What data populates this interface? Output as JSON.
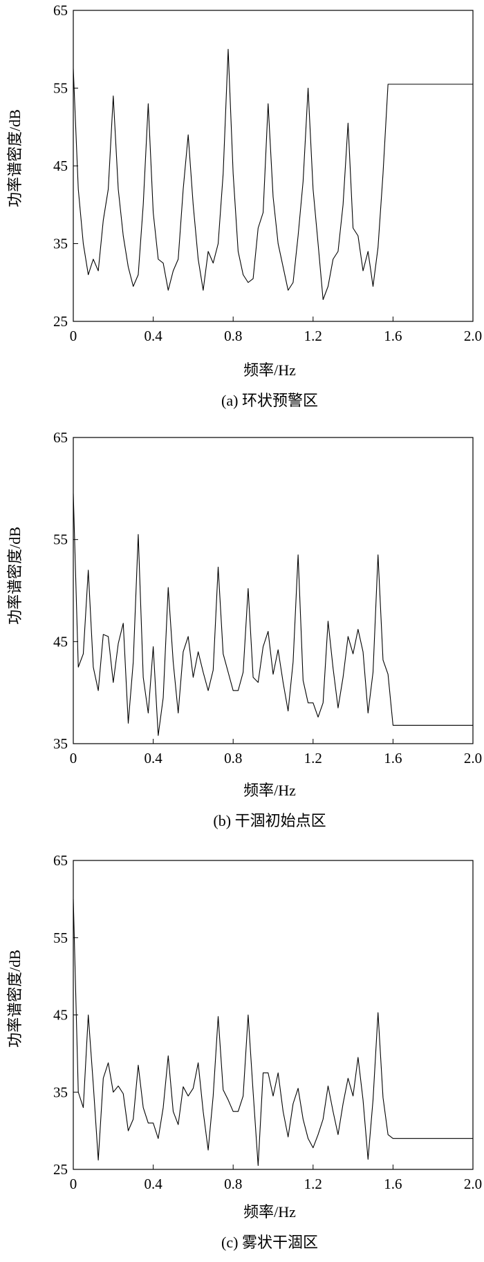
{
  "chart_data": [
    {
      "type": "line",
      "caption": "(a) 环状预警区",
      "xlabel": "频率/Hz",
      "ylabel": "功率谱密度/dB",
      "xlim": [
        0,
        2.0
      ],
      "ylim": [
        25,
        65
      ],
      "xticks": [
        "0",
        "0.4",
        "0.8",
        "1.2",
        "1.6",
        "2.0"
      ],
      "yticks": [
        "65",
        "55",
        "45",
        "35",
        "25"
      ],
      "x": [
        0,
        0.025,
        0.05,
        0.075,
        0.1,
        0.125,
        0.15,
        0.175,
        0.2,
        0.225,
        0.25,
        0.275,
        0.3,
        0.325,
        0.35,
        0.375,
        0.4,
        0.425,
        0.45,
        0.475,
        0.5,
        0.525,
        0.55,
        0.575,
        0.6,
        0.625,
        0.65,
        0.675,
        0.7,
        0.725,
        0.75,
        0.775,
        0.8,
        0.825,
        0.85,
        0.875,
        0.9,
        0.925,
        0.95,
        0.975,
        1.0,
        1.025,
        1.05,
        1.075,
        1.1,
        1.125,
        1.15,
        1.175,
        1.2,
        1.225,
        1.25,
        1.275,
        1.3,
        1.325,
        1.35,
        1.375,
        1.4,
        1.425,
        1.45,
        1.475,
        1.5,
        1.525,
        1.55,
        1.575,
        1.6,
        1.625,
        1.65,
        1.675,
        1.7,
        1.725,
        1.75,
        1.775,
        1.8,
        1.825,
        1.85,
        1.875,
        1.9,
        1.925,
        1.95,
        1.975,
        2.0
      ],
      "values": [
        57.5,
        42,
        35,
        31,
        33,
        31.5,
        38,
        42,
        54,
        42,
        36,
        32,
        29.5,
        31,
        40,
        53,
        39,
        33,
        32.5,
        29,
        31.5,
        33,
        42,
        49,
        40,
        33,
        29,
        34,
        32.5,
        35,
        44,
        60,
        44,
        34,
        31,
        30,
        30.5,
        37,
        39,
        53,
        41,
        35,
        32,
        29,
        30,
        36,
        43,
        55,
        42,
        35,
        27.8,
        29.5,
        33,
        34,
        40,
        50.5,
        37,
        36,
        31.5,
        34,
        29.5,
        34.5,
        44,
        55.5,
        55.5,
        55.5,
        55.5,
        55.5,
        55.5,
        55.5,
        55.5,
        55.5,
        55.5,
        55.5,
        55.5,
        55.5,
        55.5,
        55.5,
        55.5,
        55.5,
        55.5
      ]
    },
    {
      "type": "line",
      "caption": "(b) 干涸初始点区",
      "xlabel": "频率/Hz",
      "ylabel": "功率谱密度/dB",
      "xlim": [
        0,
        2.0
      ],
      "ylim": [
        35,
        65
      ],
      "xticks": [
        "0",
        "0.4",
        "0.8",
        "1.2",
        "1.6",
        "2.0"
      ],
      "yticks": [
        "65",
        "55",
        "45",
        "35"
      ],
      "x": [
        0,
        0.025,
        0.05,
        0.075,
        0.1,
        0.125,
        0.15,
        0.175,
        0.2,
        0.225,
        0.25,
        0.275,
        0.3,
        0.325,
        0.35,
        0.375,
        0.4,
        0.425,
        0.45,
        0.475,
        0.5,
        0.525,
        0.55,
        0.575,
        0.6,
        0.625,
        0.65,
        0.675,
        0.7,
        0.725,
        0.75,
        0.775,
        0.8,
        0.825,
        0.85,
        0.875,
        0.9,
        0.925,
        0.95,
        0.975,
        1.0,
        1.025,
        1.05,
        1.075,
        1.1,
        1.125,
        1.15,
        1.175,
        1.2,
        1.225,
        1.25,
        1.275,
        1.3,
        1.325,
        1.35,
        1.375,
        1.4,
        1.425,
        1.45,
        1.475,
        1.5,
        1.525,
        1.55,
        1.575,
        1.6,
        1.625,
        1.65,
        1.675,
        1.7,
        1.725,
        1.75,
        1.775,
        1.8,
        1.825,
        1.85,
        1.875,
        1.9,
        1.925,
        1.95,
        1.975,
        2.0
      ],
      "values": [
        59.5,
        42.5,
        43.8,
        52,
        42.5,
        40.2,
        45.7,
        45.5,
        41,
        44.8,
        46.8,
        37,
        43,
        55.5,
        41.5,
        38,
        44.5,
        35.8,
        39.5,
        50.3,
        43,
        38,
        44,
        45.5,
        41.5,
        44,
        42,
        40.2,
        42.2,
        52.3,
        43.8,
        42,
        40.2,
        40.2,
        42,
        50.2,
        41.5,
        41,
        44.5,
        46,
        41.8,
        44.2,
        41,
        38.2,
        43,
        53.5,
        41.2,
        39,
        39,
        37.6,
        39,
        47,
        42.4,
        38.5,
        41.5,
        45.5,
        43.8,
        46.2,
        44,
        38,
        42,
        53.5,
        43.2,
        41.8,
        36.8,
        36.8,
        36.8,
        36.8,
        36.8,
        36.8,
        36.8,
        36.8,
        36.8,
        36.8,
        36.8,
        36.8,
        36.8,
        36.8,
        36.8,
        36.8,
        36.8
      ]
    },
    {
      "type": "line",
      "caption": "(c) 雾状干涸区",
      "xlabel": "频率/Hz",
      "ylabel": "功率谱密度/dB",
      "xlim": [
        0,
        2.0
      ],
      "ylim": [
        25,
        65
      ],
      "xticks": [
        "0",
        "0.4",
        "0.8",
        "1.2",
        "1.6",
        "2.0"
      ],
      "yticks": [
        "65",
        "55",
        "45",
        "35",
        "25"
      ],
      "x": [
        0,
        0.025,
        0.05,
        0.075,
        0.1,
        0.125,
        0.15,
        0.175,
        0.2,
        0.225,
        0.25,
        0.275,
        0.3,
        0.325,
        0.35,
        0.375,
        0.4,
        0.425,
        0.45,
        0.475,
        0.5,
        0.525,
        0.55,
        0.575,
        0.6,
        0.625,
        0.65,
        0.675,
        0.7,
        0.725,
        0.75,
        0.775,
        0.8,
        0.825,
        0.85,
        0.875,
        0.9,
        0.925,
        0.95,
        0.975,
        1.0,
        1.025,
        1.05,
        1.075,
        1.1,
        1.125,
        1.15,
        1.175,
        1.2,
        1.225,
        1.25,
        1.275,
        1.3,
        1.325,
        1.35,
        1.375,
        1.4,
        1.425,
        1.45,
        1.475,
        1.5,
        1.525,
        1.55,
        1.575,
        1.6,
        1.625,
        1.65,
        1.675,
        1.7,
        1.725,
        1.75,
        1.775,
        1.8,
        1.825,
        1.85,
        1.875,
        1.9,
        1.925,
        1.95,
        1.975,
        2.0
      ],
      "values": [
        60,
        35,
        33,
        45,
        36,
        26.2,
        36.8,
        38.8,
        35,
        35.8,
        34.8,
        30,
        31.5,
        38.5,
        33,
        31,
        31,
        29,
        33,
        39.7,
        32.5,
        30.8,
        35.7,
        34.5,
        35.5,
        38.8,
        32.5,
        27.5,
        34.5,
        44.8,
        35.3,
        34,
        32.5,
        32.5,
        34.5,
        45,
        35,
        25.5,
        37.5,
        37.5,
        34.5,
        37.5,
        32.5,
        29.2,
        33.5,
        35.5,
        31.5,
        29,
        27.8,
        29.5,
        31.5,
        35.8,
        32.5,
        29.5,
        33.5,
        36.8,
        34.5,
        39.5,
        34,
        26.3,
        34,
        45.3,
        34.3,
        29.5,
        29,
        29,
        29,
        29,
        29,
        29,
        29,
        29,
        29,
        29,
        29,
        29,
        29,
        29,
        29,
        29,
        29
      ]
    }
  ]
}
